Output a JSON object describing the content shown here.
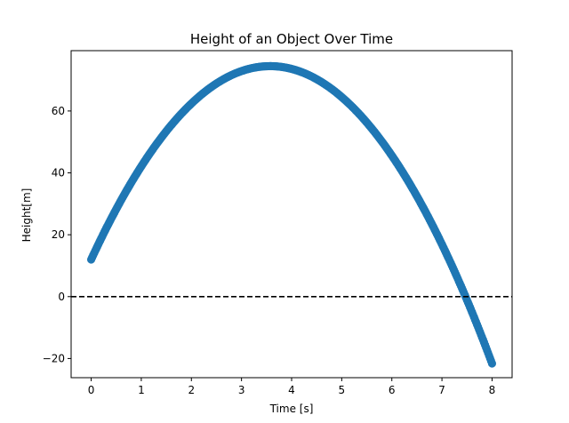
{
  "chart_data": {
    "type": "scatter",
    "title": "Height of an Object Over Time",
    "xlabel": "Time [s]",
    "ylabel": "Height[m]",
    "xlim": [
      -0.4,
      8.4
    ],
    "ylim": [
      -26.2,
      79.5
    ],
    "xticks": [
      0,
      1,
      2,
      3,
      4,
      5,
      6,
      7,
      8
    ],
    "yticks": [
      -20,
      0,
      20,
      40,
      60
    ],
    "ytick_labels": [
      "−20",
      "0",
      "20",
      "40",
      "60"
    ],
    "grid": false,
    "reference_line": {
      "y": 0,
      "style": "dashed",
      "color": "#000000"
    },
    "series": [
      {
        "color": "#1f77b4",
        "marker": "circle",
        "model": {
          "y0": 12.0,
          "v0": 35.0,
          "g": 9.8
        },
        "x_range": [
          0,
          8
        ],
        "n_points": 400
      }
    ]
  }
}
